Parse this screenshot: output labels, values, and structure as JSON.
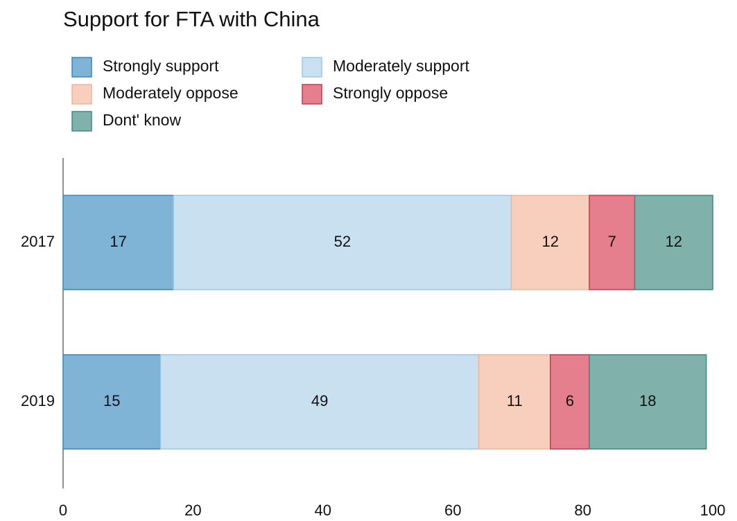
{
  "chart_data": {
    "type": "stacked-bar-horizontal",
    "title": "Support for FTA with China",
    "categories": [
      "2017",
      "2019"
    ],
    "series": [
      {
        "name": "Strongly support",
        "color": "#7fb4d6",
        "stroke": "#3a84be",
        "values": [
          17,
          15
        ]
      },
      {
        "name": "Moderately support",
        "color": "#c8e0ef",
        "stroke": "#9cc8e4",
        "values": [
          52,
          49
        ]
      },
      {
        "name": "Moderately oppose",
        "color": "#f8cfbd",
        "stroke": "#f0b49d",
        "values": [
          12,
          11
        ]
      },
      {
        "name": "Strongly oppose",
        "color": "#e57f8e",
        "stroke": "#c9384f",
        "values": [
          7,
          6
        ]
      },
      {
        "name": "Dont' know",
        "color": "#80b2ab",
        "stroke": "#3e8a80",
        "values": [
          12,
          18
        ]
      }
    ],
    "xlim": [
      0,
      100
    ],
    "xticks": [
      0,
      20,
      40,
      60,
      80,
      100
    ],
    "grid": false,
    "legend": "top-left"
  }
}
